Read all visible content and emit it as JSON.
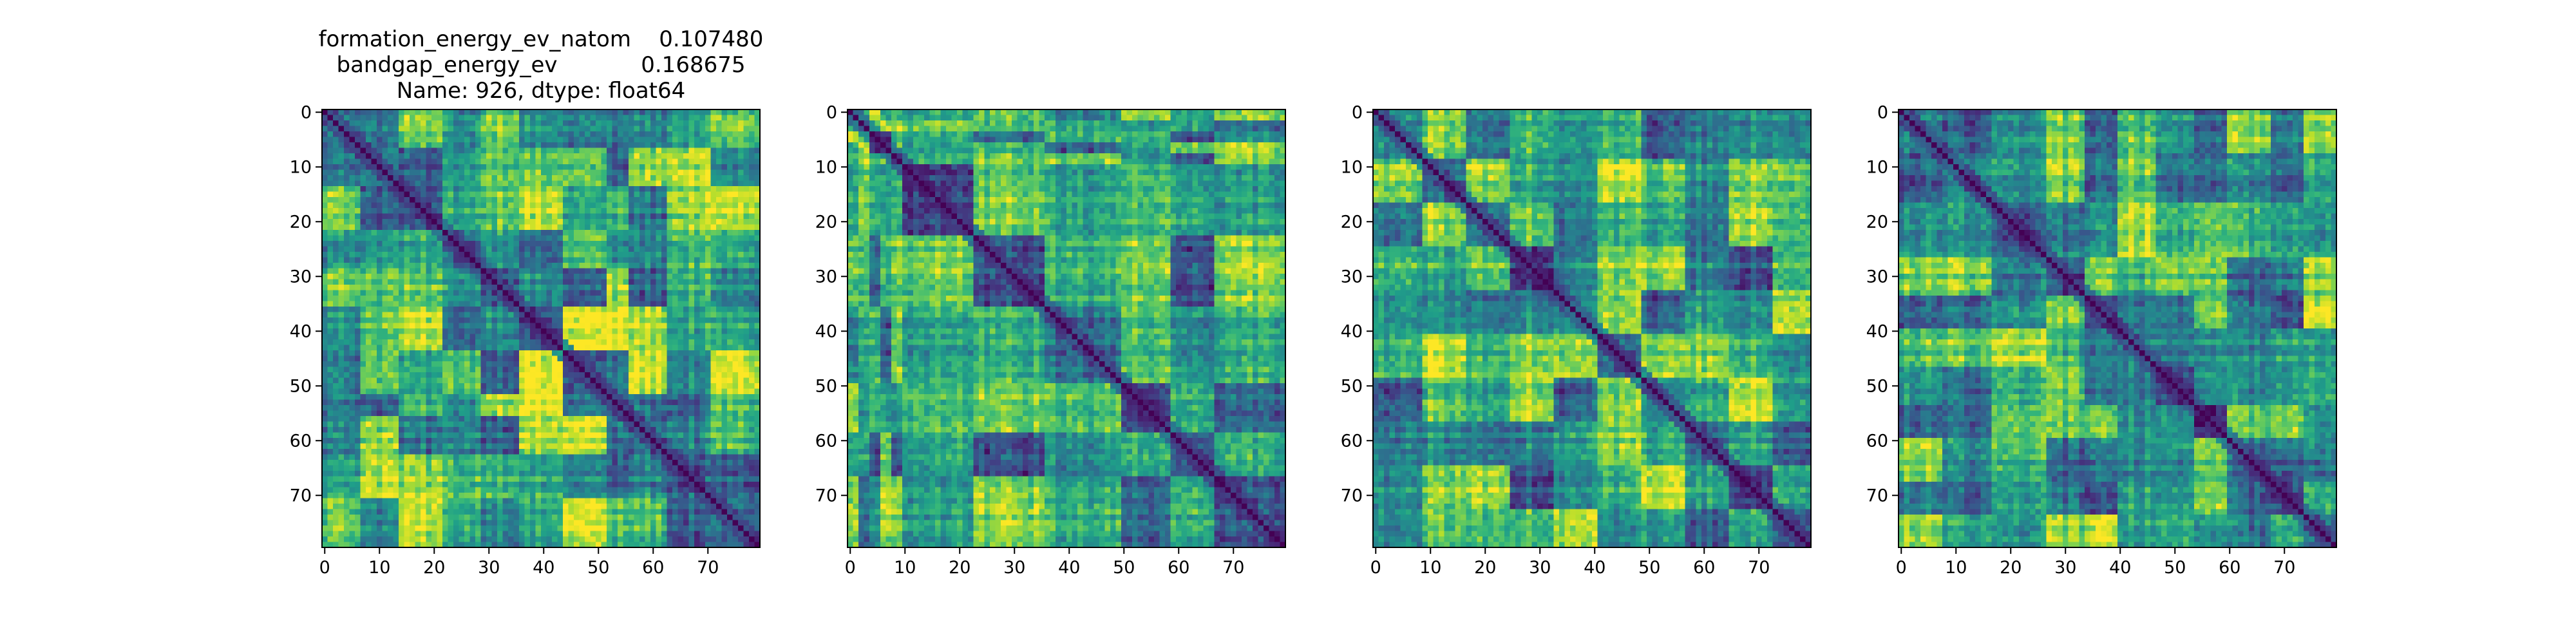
{
  "figure": {
    "background": "#ffffff",
    "colormap": "viridis"
  },
  "chart_data": [
    {
      "type": "heatmap",
      "title_lines": [
        "formation_energy_ev_natom    0.107480",
        "bandgap_energy_ev            0.168675",
        "Name: 926, dtype: float64"
      ],
      "xlabel": "",
      "ylabel": "",
      "shape": [
        80,
        80
      ],
      "xlim": [
        -0.5,
        79.5
      ],
      "ylim": [
        79.5,
        -0.5
      ],
      "x_ticks": [
        0,
        10,
        20,
        30,
        40,
        50,
        60,
        70
      ],
      "y_ticks": [
        0,
        10,
        20,
        30,
        40,
        50,
        60,
        70
      ],
      "diagonal_value": 0,
      "block_boundaries": [
        0,
        7,
        14,
        22,
        29,
        36,
        44,
        52,
        56,
        63,
        71,
        80
      ]
    },
    {
      "type": "heatmap",
      "title_lines": [],
      "xlabel": "",
      "ylabel": "",
      "shape": [
        80,
        80
      ],
      "xlim": [
        -0.5,
        79.5
      ],
      "ylim": [
        79.5,
        -0.5
      ],
      "x_ticks": [
        0,
        10,
        20,
        30,
        40,
        50,
        60,
        70
      ],
      "y_ticks": [
        0,
        10,
        20,
        30,
        40,
        50,
        60,
        70
      ],
      "diagonal_value": 0,
      "block_boundaries": [
        0,
        2,
        4,
        6,
        8,
        10,
        23,
        36,
        50,
        59,
        67,
        80
      ]
    },
    {
      "type": "heatmap",
      "title_lines": [],
      "xlabel": "",
      "ylabel": "",
      "shape": [
        80,
        80
      ],
      "xlim": [
        -0.5,
        79.5
      ],
      "ylim": [
        79.5,
        -0.5
      ],
      "x_ticks": [
        0,
        10,
        20,
        30,
        40,
        50,
        60,
        70
      ],
      "y_ticks": [
        0,
        10,
        20,
        30,
        40,
        50,
        60,
        70
      ],
      "diagonal_value": 0,
      "block_boundaries": [
        0,
        9,
        17,
        25,
        33,
        41,
        49,
        57,
        65,
        73,
        80
      ]
    },
    {
      "type": "heatmap",
      "title_lines": [],
      "xlabel": "",
      "ylabel": "",
      "shape": [
        80,
        80
      ],
      "xlim": [
        -0.5,
        79.5
      ],
      "ylim": [
        79.5,
        -0.5
      ],
      "x_ticks": [
        0,
        10,
        20,
        30,
        40,
        50,
        60,
        70
      ],
      "y_ticks": [
        0,
        10,
        20,
        30,
        40,
        50,
        60,
        70
      ],
      "diagonal_value": 0,
      "block_boundaries": [
        0,
        8,
        17,
        27,
        34,
        40,
        47,
        54,
        60,
        68,
        74,
        80
      ]
    }
  ]
}
